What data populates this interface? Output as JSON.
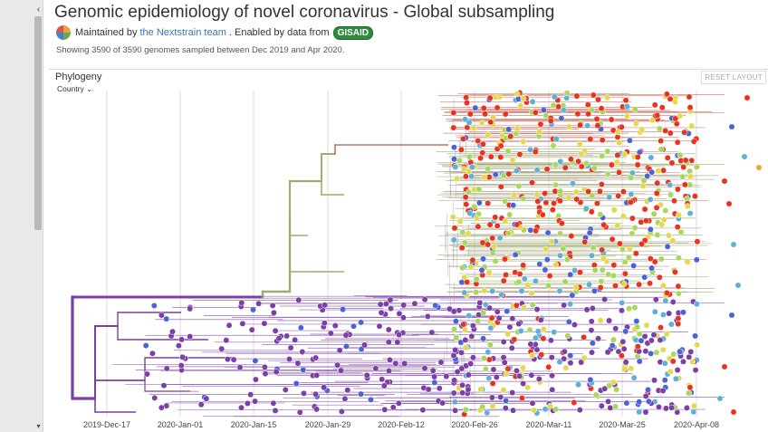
{
  "page": {
    "title": "Genomic epidemiology of novel coronavirus - Global subsampling",
    "maintained_by": "Maintained by",
    "team_link": "the Nextstrain team",
    "enabled_by": ". Enabled by data from",
    "gisaid": "GISAID",
    "summary": "Showing 3590 of 3590 genomes sampled between Dec 2019 and Apr 2020."
  },
  "panel": {
    "title": "Phylogeny",
    "reset_label": "RESET LAYOUT",
    "color_by": "Country",
    "dropdown_glyph": "⌄"
  },
  "sidebar": {
    "scroll_up": "‹",
    "scroll_down": "▾"
  },
  "colors": {
    "purple": "#7b3fa6",
    "green": "#9cae6e",
    "red": "#e8331f",
    "yellow": "#e6d84a",
    "blue": "#4b63d6",
    "light_blue": "#5fb0d8",
    "lime": "#a8d85a",
    "orange": "#f0a23a"
  },
  "chart_data": {
    "type": "scatter",
    "title": "Phylogeny",
    "xlabel": "",
    "ylabel": "",
    "x_tick_labels": [
      "2019-Dec-17",
      "2020-Jan-01",
      "2020-Jan-15",
      "2020-Jan-29",
      "2020-Feb-12",
      "2020-Feb-26",
      "2020-Mar-11",
      "2020-Mar-25",
      "2020-Apr-08"
    ],
    "xlim": [
      "2019-Dec-10",
      "2020-Apr-20"
    ],
    "color_by": "Country",
    "n_genomes": 3590,
    "grid": true
  }
}
